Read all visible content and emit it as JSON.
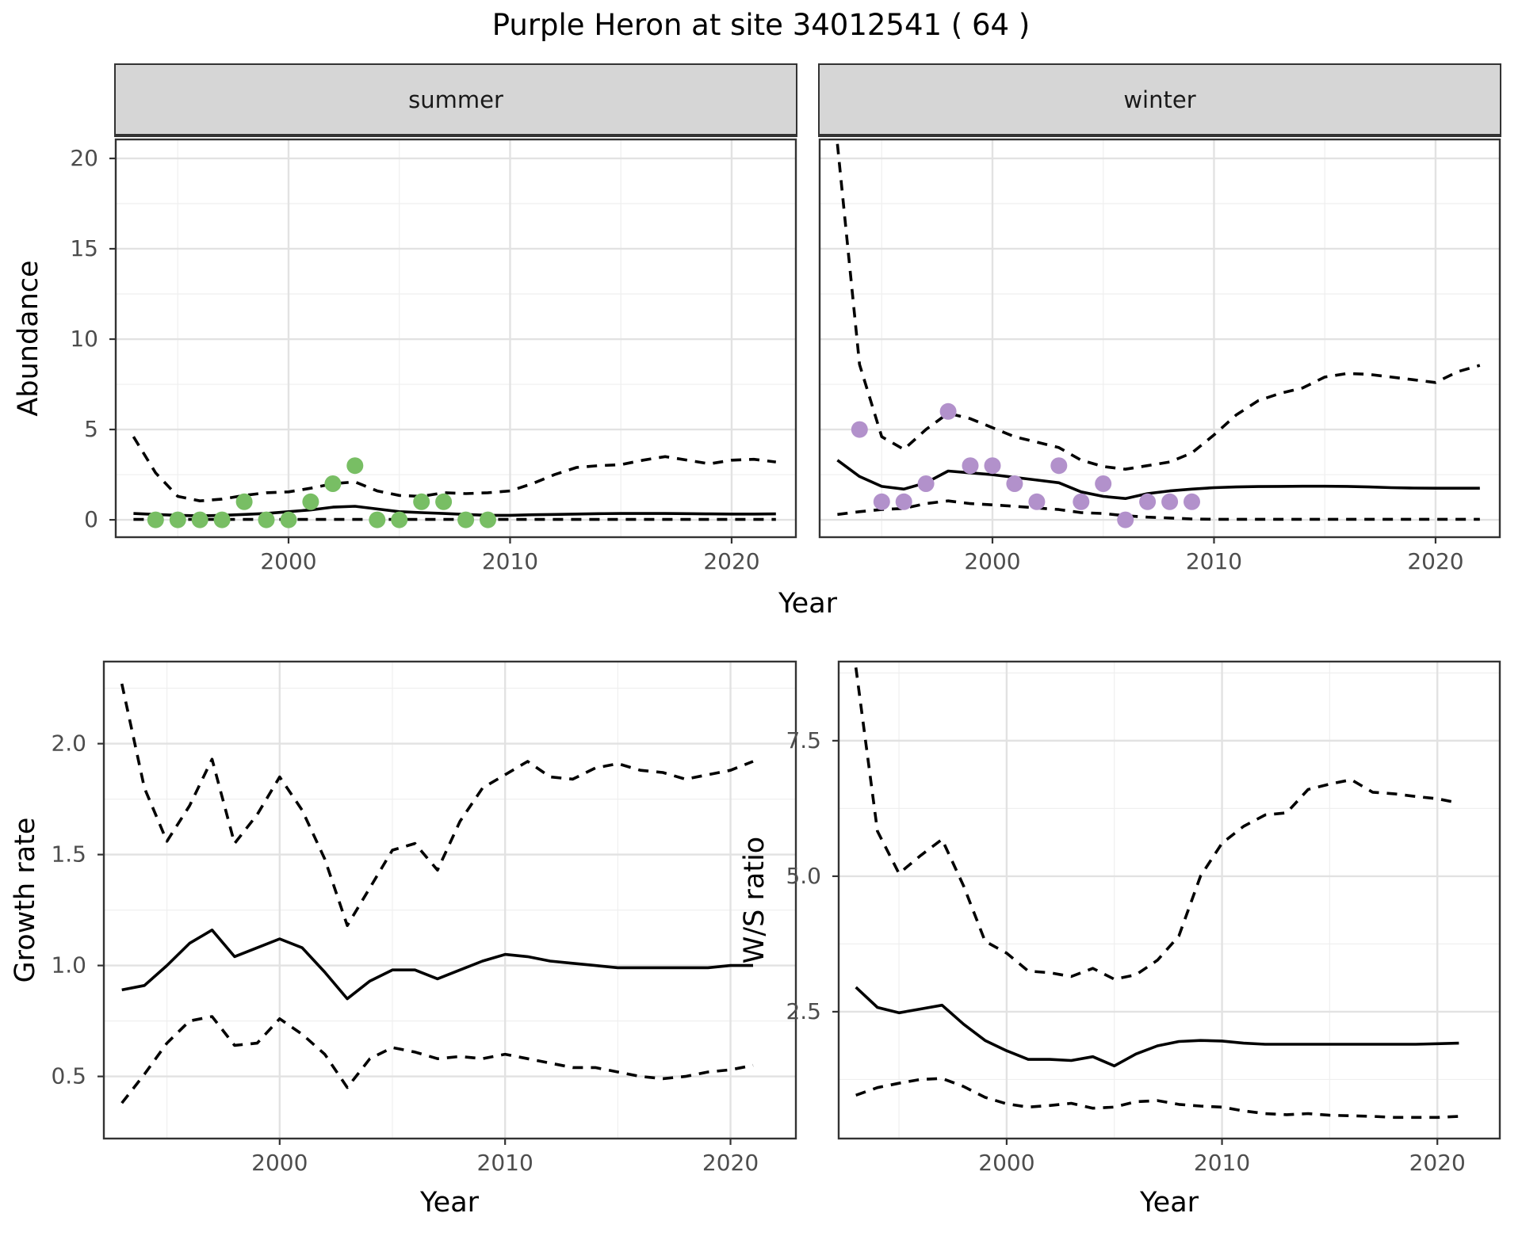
{
  "title": "Purple Heron at site 34012541 ( 64 )",
  "axis_titles": {
    "abundance": "Abundance",
    "year": "Year",
    "growth_rate": "Growth rate",
    "ws_ratio": "W/S ratio"
  },
  "colors": {
    "summer_points": "#78be64",
    "winter_points": "#b291cb",
    "line": "#000000",
    "grid_major": "#e2e2e2",
    "grid_minor": "#efefef",
    "panel_border": "#333333",
    "strip_bg": "#d6d6d6",
    "tick_label": "#4d4d4d",
    "tick_mark": "#333333"
  },
  "chart_data": [
    {
      "id": "abundance-summer",
      "type": "line",
      "facet": "summer",
      "xlabel": "Year",
      "ylabel": "Abundance",
      "xlim": [
        1992.2,
        2022.9
      ],
      "ylim": [
        -0.96,
        21.05
      ],
      "xticks": [
        2000,
        2010,
        2020
      ],
      "xtick_labels": [
        "2000",
        "2010",
        "2020"
      ],
      "xminor": [
        1995,
        2005,
        2015
      ],
      "yticks": [
        0,
        5,
        10,
        15,
        20
      ],
      "ytick_labels": [
        "0",
        "5",
        "10",
        "15",
        "20"
      ],
      "yminor": [
        2.5,
        7.5,
        12.5,
        17.5
      ],
      "x": [
        1993,
        1994,
        1995,
        1996,
        1997,
        1998,
        1999,
        2000,
        2001,
        2002,
        2003,
        2004,
        2005,
        2006,
        2007,
        2008,
        2009,
        2010,
        2011,
        2012,
        2013,
        2014,
        2015,
        2016,
        2017,
        2018,
        2019,
        2020,
        2021,
        2022
      ],
      "series": [
        {
          "name": "mean",
          "style": "solid",
          "values": [
            0.35,
            0.3,
            0.25,
            0.22,
            0.25,
            0.3,
            0.35,
            0.45,
            0.55,
            0.7,
            0.75,
            0.6,
            0.45,
            0.4,
            0.35,
            0.3,
            0.25,
            0.25,
            0.28,
            0.3,
            0.32,
            0.34,
            0.35,
            0.35,
            0.35,
            0.34,
            0.33,
            0.32,
            0.32,
            0.33
          ]
        },
        {
          "name": "upper_ci",
          "style": "dashed",
          "values": [
            4.6,
            2.6,
            1.3,
            1.05,
            1.15,
            1.35,
            1.5,
            1.55,
            1.75,
            2.0,
            2.1,
            1.6,
            1.35,
            1.3,
            1.5,
            1.45,
            1.5,
            1.6,
            2.0,
            2.5,
            2.9,
            3.0,
            3.05,
            3.3,
            3.5,
            3.3,
            3.1,
            3.3,
            3.35,
            3.2
          ]
        },
        {
          "name": "lower_ci",
          "style": "dashed",
          "values": [
            0.02,
            0.02,
            0.02,
            0.02,
            0.02,
            0.02,
            0.02,
            0.02,
            0.02,
            0.02,
            0.02,
            0.02,
            0.02,
            0.02,
            0.02,
            0.02,
            0.02,
            0.02,
            0.02,
            0.02,
            0.02,
            0.02,
            0.02,
            0.02,
            0.02,
            0.02,
            0.02,
            0.02,
            0.02,
            0.02
          ]
        }
      ],
      "points": {
        "name": "observed-counts",
        "color_key": "summer_points",
        "x": [
          1994,
          1995,
          1996,
          1997,
          1998,
          1999,
          2000,
          2001,
          2002,
          2003,
          2004,
          2005,
          2006,
          2007,
          2008,
          2009
        ],
        "y": [
          0,
          0,
          0,
          0,
          1,
          0,
          0,
          1,
          2,
          3,
          0,
          0,
          1,
          1,
          0,
          0
        ]
      }
    },
    {
      "id": "abundance-winter",
      "type": "line",
      "facet": "winter",
      "xlabel": "Year",
      "ylabel": "Abundance",
      "xlim": [
        1992.2,
        2022.9
      ],
      "ylim": [
        -0.96,
        21.05
      ],
      "xticks": [
        2000,
        2010,
        2020
      ],
      "xtick_labels": [
        "2000",
        "2010",
        "2020"
      ],
      "xminor": [
        1995,
        2005,
        2015
      ],
      "yticks": [
        0,
        5,
        10,
        15,
        20
      ],
      "ytick_labels": [
        "0",
        "5",
        "10",
        "15",
        "20"
      ],
      "yminor": [
        2.5,
        7.5,
        12.5,
        17.5
      ],
      "x": [
        1993,
        1994,
        1995,
        1996,
        1997,
        1998,
        1999,
        2000,
        2001,
        2002,
        2003,
        2004,
        2005,
        2006,
        2007,
        2008,
        2009,
        2010,
        2011,
        2012,
        2013,
        2014,
        2015,
        2016,
        2017,
        2018,
        2019,
        2020,
        2021,
        2022
      ],
      "series": [
        {
          "name": "mean",
          "style": "solid",
          "values": [
            3.3,
            2.4,
            1.85,
            1.7,
            2.05,
            2.7,
            2.6,
            2.5,
            2.35,
            2.2,
            2.05,
            1.55,
            1.3,
            1.18,
            1.45,
            1.6,
            1.7,
            1.78,
            1.82,
            1.84,
            1.85,
            1.86,
            1.86,
            1.85,
            1.82,
            1.78,
            1.76,
            1.75,
            1.75,
            1.75
          ]
        },
        {
          "name": "upper_ci",
          "style": "dashed",
          "values": [
            20.8,
            8.6,
            4.6,
            3.9,
            5.0,
            5.9,
            5.6,
            5.1,
            4.6,
            4.3,
            4.0,
            3.3,
            2.95,
            2.8,
            3.0,
            3.2,
            3.7,
            4.7,
            5.8,
            6.6,
            7.0,
            7.3,
            7.9,
            8.1,
            8.05,
            7.9,
            7.75,
            7.6,
            8.2,
            8.55
          ]
        },
        {
          "name": "lower_ci",
          "style": "dashed",
          "values": [
            0.3,
            0.45,
            0.57,
            0.63,
            0.9,
            1.05,
            0.9,
            0.83,
            0.75,
            0.66,
            0.57,
            0.4,
            0.35,
            0.23,
            0.15,
            0.1,
            0.05,
            0.03,
            0.03,
            0.03,
            0.03,
            0.03,
            0.03,
            0.03,
            0.03,
            0.03,
            0.03,
            0.03,
            0.03,
            0.03
          ]
        }
      ],
      "points": {
        "name": "observed-counts",
        "color_key": "winter_points",
        "x": [
          1994,
          1995,
          1996,
          1997,
          1998,
          1999,
          2000,
          2001,
          2002,
          2003,
          2004,
          2005,
          2006,
          2007,
          2008,
          2009
        ],
        "y": [
          5,
          1,
          1,
          2,
          6,
          3,
          3,
          2,
          1,
          3,
          1,
          2,
          0,
          1,
          1,
          1
        ]
      }
    },
    {
      "id": "growth-rate",
      "type": "line",
      "facet": null,
      "xlabel": "Year",
      "ylabel": "Growth rate",
      "xlim": [
        1992.2,
        2022.9
      ],
      "ylim": [
        0.22,
        2.37
      ],
      "xticks": [
        2000,
        2010,
        2020
      ],
      "xtick_labels": [
        "2000",
        "2010",
        "2020"
      ],
      "xminor": [
        1995,
        2005,
        2015
      ],
      "yticks": [
        0.5,
        1.0,
        1.5,
        2.0
      ],
      "ytick_labels": [
        "0.5",
        "1.0",
        "1.5",
        "2.0"
      ],
      "yminor": [
        0.75,
        1.25,
        1.75,
        2.25
      ],
      "x": [
        1993,
        1994,
        1995,
        1996,
        1997,
        1998,
        1999,
        2000,
        2001,
        2002,
        2003,
        2004,
        2005,
        2006,
        2007,
        2008,
        2009,
        2010,
        2011,
        2012,
        2013,
        2014,
        2015,
        2016,
        2017,
        2018,
        2019,
        2020,
        2021
      ],
      "series": [
        {
          "name": "mean",
          "style": "solid",
          "values": [
            0.89,
            0.91,
            1.0,
            1.1,
            1.16,
            1.04,
            1.08,
            1.12,
            1.08,
            0.97,
            0.85,
            0.93,
            0.98,
            0.98,
            0.94,
            0.98,
            1.02,
            1.05,
            1.04,
            1.02,
            1.01,
            1.0,
            0.99,
            0.99,
            0.99,
            0.99,
            0.99,
            1.0,
            1.0
          ]
        },
        {
          "name": "upper_ci",
          "style": "dashed",
          "values": [
            2.27,
            1.8,
            1.56,
            1.72,
            1.93,
            1.55,
            1.68,
            1.85,
            1.7,
            1.48,
            1.18,
            1.35,
            1.52,
            1.55,
            1.43,
            1.65,
            1.8,
            1.86,
            1.92,
            1.85,
            1.84,
            1.89,
            1.91,
            1.88,
            1.87,
            1.84,
            1.86,
            1.88,
            1.92
          ]
        },
        {
          "name": "lower_ci",
          "style": "dashed",
          "values": [
            0.38,
            0.51,
            0.65,
            0.75,
            0.77,
            0.64,
            0.65,
            0.76,
            0.69,
            0.6,
            0.45,
            0.58,
            0.63,
            0.61,
            0.58,
            0.59,
            0.58,
            0.6,
            0.58,
            0.56,
            0.54,
            0.54,
            0.52,
            0.5,
            0.49,
            0.5,
            0.52,
            0.53,
            0.55
          ]
        }
      ],
      "points": null
    },
    {
      "id": "ws-ratio",
      "type": "line",
      "facet": null,
      "xlabel": "Year",
      "ylabel": "W/S ratio",
      "xlim": [
        1992.2,
        2022.9
      ],
      "ylim": [
        0.16,
        8.96
      ],
      "xticks": [
        2000,
        2010,
        2020
      ],
      "xtick_labels": [
        "2000",
        "2010",
        "2020"
      ],
      "xminor": [
        1995,
        2005,
        2015
      ],
      "yticks": [
        2.5,
        5.0,
        7.5
      ],
      "ytick_labels": [
        "2.5",
        "5.0",
        "7.5"
      ],
      "yminor": [
        1.25,
        3.75,
        6.25,
        8.75
      ],
      "x": [
        1993,
        1994,
        1995,
        1996,
        1997,
        1998,
        1999,
        2000,
        2001,
        2002,
        2003,
        2004,
        2005,
        2006,
        2007,
        2008,
        2009,
        2010,
        2011,
        2012,
        2013,
        2014,
        2015,
        2016,
        2017,
        2018,
        2019,
        2020,
        2021
      ],
      "series": [
        {
          "name": "mean",
          "style": "solid",
          "values": [
            2.95,
            2.58,
            2.48,
            2.55,
            2.62,
            2.27,
            1.97,
            1.78,
            1.62,
            1.62,
            1.6,
            1.67,
            1.5,
            1.72,
            1.87,
            1.95,
            1.97,
            1.96,
            1.92,
            1.9,
            1.9,
            1.9,
            1.9,
            1.9,
            1.9,
            1.9,
            1.9,
            1.91,
            1.92
          ]
        },
        {
          "name": "upper_ci",
          "style": "dashed",
          "values": [
            8.85,
            5.83,
            5.05,
            5.38,
            5.68,
            4.82,
            3.8,
            3.58,
            3.25,
            3.22,
            3.15,
            3.3,
            3.1,
            3.18,
            3.45,
            3.9,
            5.0,
            5.61,
            5.92,
            6.13,
            6.17,
            6.6,
            6.7,
            6.78,
            6.55,
            6.52,
            6.47,
            6.43,
            6.35
          ]
        },
        {
          "name": "lower_ci",
          "style": "dashed",
          "values": [
            0.96,
            1.1,
            1.18,
            1.25,
            1.27,
            1.12,
            0.92,
            0.8,
            0.74,
            0.77,
            0.81,
            0.72,
            0.74,
            0.84,
            0.86,
            0.79,
            0.76,
            0.74,
            0.67,
            0.62,
            0.6,
            0.62,
            0.59,
            0.58,
            0.57,
            0.55,
            0.55,
            0.55,
            0.57
          ]
        }
      ],
      "points": null
    }
  ]
}
